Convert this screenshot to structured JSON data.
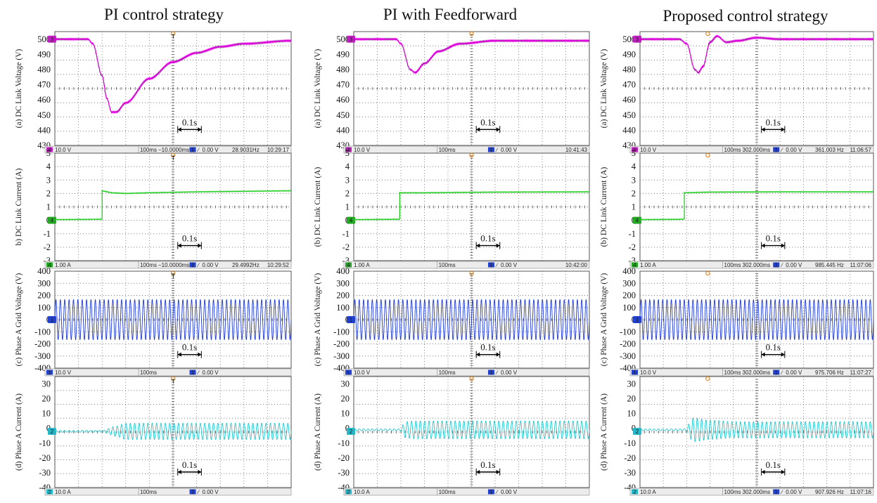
{
  "colors": {
    "ch3": "#d400d4",
    "ch4": "#22d022",
    "ch1": "#1f3ad6",
    "ch2": "#22c8cf",
    "grid": "#7a7a7a",
    "trigger": "#e08a2a"
  },
  "column_titles": [
    "PI control strategy",
    "PI with Feedforward",
    "Proposed control strategy"
  ],
  "time_annotation": "0.1s",
  "rows": [
    {
      "label": "(a) DC Link Voltage (V)",
      "ticks": [
        "500",
        "490",
        "480",
        "470",
        "460",
        "450",
        "440",
        "430"
      ],
      "marker": "3"
    },
    {
      "label": "(b) DC Link Current (A)",
      "label_alt": "b) DC Link Current (A)",
      "ticks": [
        "5",
        "4",
        "3",
        "2",
        "1",
        "0",
        "-1",
        "-2",
        "-3"
      ],
      "marker": "4"
    },
    {
      "label": "(c) Phase A Grid Voltage (V)",
      "ticks": [
        "400",
        "300",
        "200",
        "100",
        "0",
        "-100",
        "-200",
        "-300",
        "-400"
      ],
      "marker": "1"
    },
    {
      "label": "(d) Phase A Current (A)",
      "ticks": [
        "30",
        "20",
        "10",
        "0",
        "-10",
        "-20",
        "-30",
        "-40"
      ],
      "marker": "2"
    }
  ],
  "status_bars": [
    [
      {
        "ch": "3",
        "scale": "10.0 V",
        "timebase": "100ms",
        "delay": "−10.0000ms",
        "trig": "1",
        "level": "0.00 V",
        "freq": "28.9031Hz",
        "clock": "10:29:17"
      },
      {
        "ch": "4",
        "scale": "1.00 A",
        "timebase": "100ms",
        "delay": "−10.0000ms",
        "trig": "1",
        "level": "0.00 V",
        "freq": "29.4992Hz",
        "clock": "10:29:52"
      },
      {
        "ch": "1",
        "scale": "10.0 V",
        "timebase": "100ms",
        "delay": "",
        "trig": "1",
        "level": "0.00 V",
        "freq": "",
        "clock": ""
      },
      {
        "ch": "2",
        "scale": "10.0 A",
        "timebase": "100ms",
        "delay": "",
        "trig": "1",
        "level": "0.00 V",
        "freq": "",
        "clock": ""
      }
    ],
    [
      {
        "ch": "3",
        "scale": "10.0 V",
        "timebase": "100ms",
        "delay": "",
        "trig": "1",
        "level": "0.00 V",
        "freq": "",
        "clock": "10:41:43"
      },
      {
        "ch": "4",
        "scale": "1.00 A",
        "timebase": "100ms",
        "delay": "",
        "trig": "1",
        "level": "0.00 V",
        "freq": "",
        "clock": "10:42:00"
      },
      {
        "ch": "1",
        "scale": "10.0 V",
        "timebase": "100ms",
        "delay": "",
        "trig": "1",
        "level": "0.00 V",
        "freq": "",
        "clock": ""
      },
      {
        "ch": "2",
        "scale": "10.0 A",
        "timebase": "100ms",
        "delay": "",
        "trig": "1",
        "level": "0.00 V",
        "freq": "",
        "clock": ""
      }
    ],
    [
      {
        "ch": "3",
        "scale": "10.0 V",
        "timebase": "100ms",
        "delay": "302.000ms",
        "trig": "1",
        "level": "0.00 V",
        "freq": "361.003 Hz",
        "clock": "11:06:57"
      },
      {
        "ch": "4",
        "scale": "1.00 A",
        "timebase": "100ms",
        "delay": "302.000ms",
        "trig": "1",
        "level": "0.00 V",
        "freq": "985.445 Hz",
        "clock": "11:07:06"
      },
      {
        "ch": "1",
        "scale": "10.0 V",
        "timebase": "100ms",
        "delay": "302.000ms",
        "trig": "1",
        "level": "0.00 V",
        "freq": "975.706 Hz",
        "clock": "11:07:27"
      },
      {
        "ch": "2",
        "scale": "10.0 A",
        "timebase": "100ms",
        "delay": "302.000ms",
        "trig": "1",
        "level": "0.00 V",
        "freq": "907.926 Hz",
        "clock": "11:07:16"
      }
    ]
  ],
  "chart_data": [
    {
      "type": "line",
      "column_title": "PI control strategy",
      "ylabel": "(a) DC Link Voltage (V)",
      "ylim": [
        430,
        505
      ],
      "time_per_div": "100ms",
      "series": [
        {
          "x": [
            0,
            0.14,
            0.16,
            0.2,
            0.22,
            0.24,
            0.26,
            0.3,
            0.4,
            0.5,
            0.6,
            0.7,
            0.8,
            1.0
          ],
          "y": [
            500,
            500,
            497,
            476,
            461,
            452,
            452,
            458,
            474,
            485,
            491,
            495,
            497,
            499
          ]
        }
      ]
    },
    {
      "type": "line",
      "column_title": "PI control strategy",
      "ylabel": "(b) DC Link Current (A)",
      "ylim": [
        -3,
        5
      ],
      "time_per_div": "100ms",
      "series": [
        {
          "x": [
            0,
            0.2,
            0.2,
            0.24,
            0.3,
            0.4,
            0.6,
            1.0
          ],
          "y": [
            0.05,
            0.08,
            2.2,
            2.05,
            2.0,
            2.05,
            2.12,
            2.2
          ]
        }
      ]
    },
    {
      "type": "line",
      "column_title": "PI control strategy",
      "ylabel": "(c) Phase A Grid Voltage (V)",
      "ylim": [
        -400,
        400
      ],
      "time_per_div": "100ms",
      "series": [
        {
          "x": [
            0,
            1
          ],
          "amplitude": [
            165,
            165
          ],
          "cycles": 54
        }
      ]
    },
    {
      "type": "line",
      "column_title": "PI control strategy",
      "ylabel": "(d) Phase A Current (A)",
      "ylim": [
        -40,
        35
      ],
      "time_per_div": "100ms",
      "series": [
        {
          "x": [
            0,
            0.2,
            0.26,
            0.3,
            1.0
          ],
          "amplitude": [
            0.6,
            0.6,
            3.5,
            5.5,
            5.5
          ],
          "offset": -2,
          "cycles": 54
        }
      ]
    },
    {
      "type": "line",
      "column_title": "PI with Feedforward",
      "ylabel": "(a) DC Link Voltage (V)",
      "ylim": [
        430,
        505
      ],
      "time_per_div": "100ms",
      "series": [
        {
          "x": [
            0,
            0.18,
            0.2,
            0.24,
            0.26,
            0.3,
            0.36,
            0.45,
            0.6,
            1.0
          ],
          "y": [
            500,
            500,
            497,
            480,
            478,
            484,
            492,
            497,
            499,
            499
          ]
        }
      ]
    },
    {
      "type": "line",
      "column_title": "PI with Feedforward",
      "ylabel": "(b) DC Link Current (A)",
      "ylim": [
        -3,
        5
      ],
      "time_per_div": "100ms",
      "series": [
        {
          "x": [
            0,
            0.195,
            0.195,
            0.3,
            0.6,
            1.0
          ],
          "y": [
            0.05,
            0.08,
            2.05,
            2.05,
            2.1,
            2.12
          ]
        }
      ]
    },
    {
      "type": "line",
      "column_title": "PI with Feedforward",
      "ylabel": "(c) Phase A Grid Voltage (V)",
      "ylim": [
        -400,
        400
      ],
      "time_per_div": "100ms",
      "series": [
        {
          "x": [
            0,
            1
          ],
          "amplitude": [
            165,
            165
          ],
          "cycles": 54
        }
      ]
    },
    {
      "type": "line",
      "column_title": "PI with Feedforward",
      "ylabel": "(d) Phase A Current (A)",
      "ylim": [
        -40,
        35
      ],
      "time_per_div": "100ms",
      "series": [
        {
          "x": [
            0,
            0.195,
            0.22,
            0.26,
            1.0
          ],
          "amplitude": [
            0.6,
            0.6,
            5.5,
            6,
            6
          ],
          "offset": -1,
          "cycles": 54
        }
      ]
    },
    {
      "type": "line",
      "column_title": "Proposed control strategy",
      "ylabel": "(a) DC Link Voltage (V)",
      "ylim": [
        430,
        505
      ],
      "time_per_div": "100ms",
      "series": [
        {
          "x": [
            0,
            0.17,
            0.2,
            0.235,
            0.25,
            0.27,
            0.3,
            0.33,
            0.37,
            0.42,
            0.5,
            0.6,
            1.0
          ],
          "y": [
            500,
            500,
            497,
            480,
            478,
            482,
            498,
            502,
            498,
            499,
            501,
            500,
            500
          ]
        }
      ]
    },
    {
      "type": "line",
      "column_title": "Proposed control strategy",
      "ylabel": "(b) DC Link Current (A)",
      "ylim": [
        -3,
        5
      ],
      "time_per_div": "100ms",
      "series": [
        {
          "x": [
            0,
            0.19,
            0.19,
            0.3,
            0.6,
            1.0
          ],
          "y": [
            0.05,
            0.08,
            2.05,
            2.1,
            2.12,
            2.12
          ]
        }
      ]
    },
    {
      "type": "line",
      "column_title": "Proposed control strategy",
      "ylabel": "(c) Phase A Grid Voltage (V)",
      "ylim": [
        -400,
        400
      ],
      "time_per_div": "100ms",
      "series": [
        {
          "x": [
            0,
            1
          ],
          "amplitude": [
            165,
            165
          ],
          "cycles": 54
        }
      ]
    },
    {
      "type": "line",
      "column_title": "Proposed control strategy",
      "ylabel": "(d) Phase A Current (A)",
      "ylim": [
        -40,
        35
      ],
      "time_per_div": "100ms",
      "series": [
        {
          "x": [
            0,
            0.19,
            0.23,
            0.3,
            0.4,
            1.0
          ],
          "amplitude": [
            0.6,
            0.6,
            8,
            6.5,
            5.5,
            5.5
          ],
          "offset": -1,
          "cycles": 54
        }
      ]
    }
  ]
}
